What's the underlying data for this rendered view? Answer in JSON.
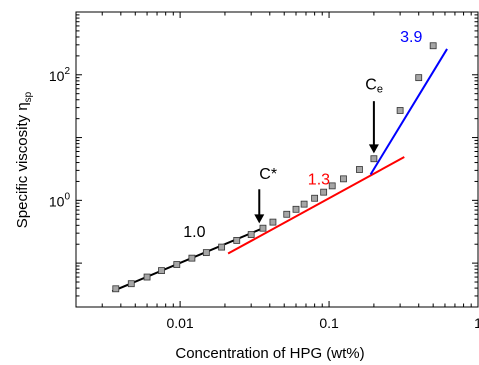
{
  "chart_data": {
    "type": "scatter",
    "title": "",
    "xlabel": "Concentration of HPG (wt%)",
    "ylabel_main": "Specific viscosity η",
    "ylabel_sub": "sp",
    "x_scale": "log",
    "y_scale": "log",
    "xlim": [
      0.002,
      1
    ],
    "ylim": [
      0.02,
      1000
    ],
    "grid": false,
    "x_ticks": [
      {
        "value": 0.01,
        "label": "0.01"
      },
      {
        "value": 0.1,
        "label": "0.1"
      },
      {
        "value": 1,
        "label": "1"
      }
    ],
    "y_ticks": [
      {
        "value": 1,
        "base": "10",
        "exp": "0"
      },
      {
        "value": 100,
        "base": "10",
        "exp": "2"
      }
    ],
    "points": {
      "x": [
        0.0037,
        0.0047,
        0.006,
        0.0075,
        0.0095,
        0.012,
        0.015,
        0.019,
        0.024,
        0.03,
        0.036,
        0.042,
        0.052,
        0.06,
        0.068,
        0.08,
        0.092,
        0.105,
        0.125,
        0.16,
        0.2,
        0.3,
        0.4,
        0.5
      ],
      "y": [
        0.039,
        0.047,
        0.06,
        0.076,
        0.095,
        0.12,
        0.147,
        0.18,
        0.23,
        0.285,
        0.36,
        0.45,
        0.6,
        0.72,
        0.87,
        1.08,
        1.35,
        1.7,
        2.2,
        3.1,
        4.6,
        27,
        90,
        290
      ],
      "marker_color": "#a6a6a6",
      "edge_color": "#333333"
    },
    "fit_lines": [
      {
        "slope_label": "1.0",
        "color": "#000000",
        "x": [
          0.0035,
          0.036
        ],
        "y": [
          0.0355,
          0.36
        ]
      },
      {
        "slope_label": "1.3",
        "color": "#ff0000",
        "x": [
          0.021,
          0.32
        ],
        "y": [
          0.142,
          4.9
        ]
      },
      {
        "slope_label": "3.9",
        "color": "#0000ff",
        "x": [
          0.19,
          0.62
        ],
        "y": [
          2.58,
          258
        ]
      }
    ],
    "annotations": [
      {
        "text": "1.0",
        "color": "#000000",
        "x": 0.0105,
        "y": 0.26
      },
      {
        "text": "1.3",
        "color": "#ff0000",
        "x": 0.072,
        "y": 1.8
      },
      {
        "text": "3.9",
        "color": "#0000ff",
        "x": 0.3,
        "y": 330
      },
      {
        "text": "C*",
        "color": "#000000",
        "x": 0.034,
        "y": 2.2,
        "arrow_from": [
          0.034,
          1.5
        ],
        "arrow_to": [
          0.034,
          0.43
        ]
      },
      {
        "text": "C",
        "sub": "e",
        "color": "#000000",
        "x": 0.175,
        "y": 58,
        "arrow_from": [
          0.2,
          38
        ],
        "arrow_to": [
          0.2,
          5.6
        ]
      }
    ]
  }
}
